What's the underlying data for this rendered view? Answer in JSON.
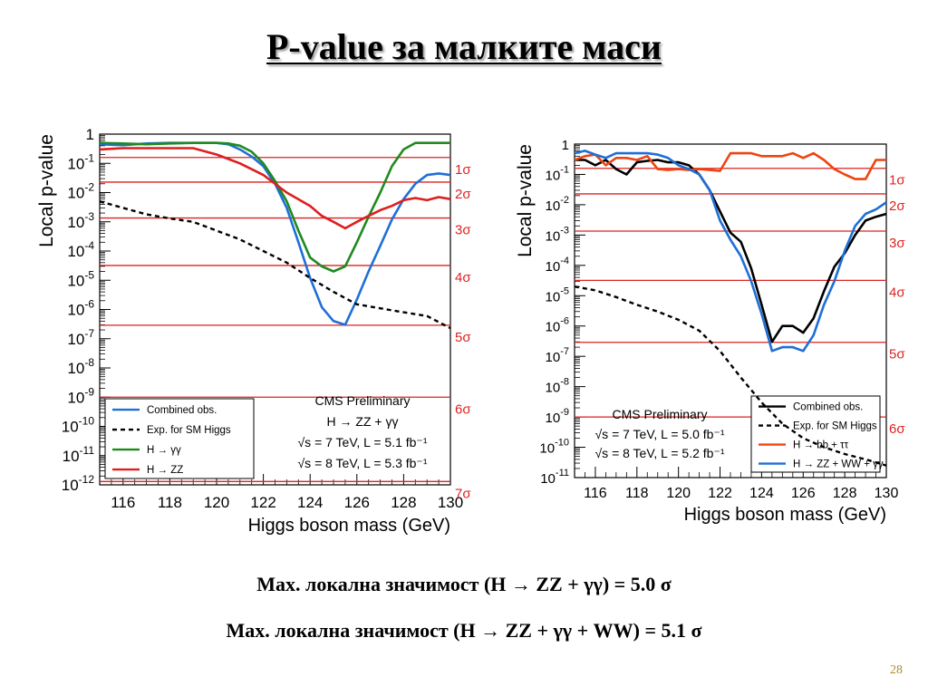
{
  "slide": {
    "title": "P-value за малките маси",
    "summary_1": "Max. локална значимост (H → ZZ + γγ) = 5.0 σ",
    "summary_2": "Max. локална значимост (H → ZZ + γγ + WW) = 5.1 σ",
    "page_number": "28"
  },
  "chart_data": [
    {
      "type": "line",
      "xlabel": "Higgs boson mass (GeV)",
      "ylabel": "Local p-value",
      "xlim": [
        115,
        130
      ],
      "y_scale": "log",
      "ylim": [
        1e-12,
        1
      ],
      "x_ticks": [
        "116",
        "118",
        "120",
        "122",
        "124",
        "126",
        "128",
        "130"
      ],
      "y_ticks": [
        {
          "base": "1",
          "exp": ""
        },
        {
          "base": "10",
          "exp": "-1"
        },
        {
          "base": "10",
          "exp": "-2"
        },
        {
          "base": "10",
          "exp": "-3"
        },
        {
          "base": "10",
          "exp": "-4"
        },
        {
          "base": "10",
          "exp": "-5"
        },
        {
          "base": "10",
          "exp": "-6"
        },
        {
          "base": "10",
          "exp": "-7"
        },
        {
          "base": "10",
          "exp": "-8"
        },
        {
          "base": "10",
          "exp": "-9"
        },
        {
          "base": "10",
          "exp": "-10"
        },
        {
          "base": "10",
          "exp": "-11"
        },
        {
          "base": "10",
          "exp": "-12"
        }
      ],
      "sigma_lines": [
        {
          "label": "1σ",
          "p": 0.159
        },
        {
          "label": "2σ",
          "p": 0.0228
        },
        {
          "label": "3σ",
          "p": 0.00135
        },
        {
          "label": "4σ",
          "p": 3.2e-05
        },
        {
          "label": "5σ",
          "p": 2.9e-07
        },
        {
          "label": "6σ",
          "p": 1e-09
        },
        {
          "label": "7σ",
          "p": 1.3e-12
        }
      ],
      "annotation": [
        "CMS Preliminary",
        "H → ZZ + γγ",
        "√s = 7 TeV, L = 5.1 fb⁻¹",
        "√s = 8 TeV, L = 5.3 fb⁻¹"
      ],
      "legend_position": "bottom-left",
      "series": [
        {
          "name": "Combined obs.",
          "color": "#1f6fd6",
          "style": "solid",
          "x": [
            115,
            116,
            117,
            118,
            119,
            120,
            120.5,
            121,
            121.5,
            122,
            122.5,
            123,
            123.5,
            124,
            124.5,
            125,
            125.5,
            126,
            126.5,
            127,
            127.5,
            128,
            128.5,
            129,
            129.5,
            130
          ],
          "y": [
            0.45,
            0.42,
            0.48,
            0.5,
            0.5,
            0.5,
            0.45,
            0.3,
            0.17,
            0.08,
            0.02,
            0.003,
            0.0002,
            1.2e-05,
            1.2e-06,
            4e-07,
            3e-07,
            2.2e-06,
            2e-05,
            0.00015,
            0.0012,
            0.006,
            0.02,
            0.04,
            0.045,
            0.04
          ]
        },
        {
          "name": "Exp. for SM Higgs",
          "color": "#000000",
          "style": "dashed",
          "x": [
            115,
            116,
            117,
            118,
            119,
            120,
            121,
            122,
            123,
            124,
            125,
            126,
            127,
            128,
            129,
            130
          ],
          "y": [
            0.005,
            0.003,
            0.0018,
            0.0013,
            0.001,
            0.0005,
            0.00025,
            0.0001,
            4e-05,
            1.2e-05,
            4e-06,
            1.5e-06,
            1.1e-06,
            8e-07,
            6e-07,
            2.3e-07
          ]
        },
        {
          "name": "H → γγ",
          "color": "#1f8a1f",
          "style": "solid",
          "x": [
            115,
            116,
            117,
            118,
            119,
            120,
            120.5,
            121,
            121.5,
            122,
            122.5,
            123,
            123.5,
            124,
            124.5,
            125,
            125.5,
            126,
            126.5,
            127,
            127.5,
            128,
            128.5,
            129,
            129.5,
            130
          ],
          "y": [
            0.5,
            0.48,
            0.45,
            0.48,
            0.5,
            0.5,
            0.48,
            0.4,
            0.25,
            0.1,
            0.025,
            0.005,
            0.0005,
            6e-05,
            3e-05,
            2e-05,
            3e-05,
            0.0002,
            0.0015,
            0.01,
            0.08,
            0.3,
            0.5,
            0.5,
            0.5,
            0.5
          ]
        },
        {
          "name": "H → ZZ",
          "color": "#dd1f1f",
          "style": "solid",
          "x": [
            115,
            116,
            117,
            118,
            119,
            120,
            121,
            122,
            123,
            124,
            124.5,
            125,
            125.5,
            126,
            126.5,
            127,
            127.5,
            128,
            128.5,
            129,
            129.5,
            130
          ],
          "y": [
            0.3,
            0.33,
            0.33,
            0.33,
            0.33,
            0.2,
            0.1,
            0.04,
            0.01,
            0.0035,
            0.0016,
            0.001,
            0.0006,
            0.001,
            0.0016,
            0.0025,
            0.0035,
            0.0055,
            0.0065,
            0.0055,
            0.007,
            0.006
          ]
        }
      ]
    },
    {
      "type": "line",
      "xlabel": "Higgs boson mass (GeV)",
      "ylabel": "Local p-value",
      "xlim": [
        115,
        130
      ],
      "y_scale": "log",
      "ylim": [
        1e-11,
        1
      ],
      "x_ticks": [
        "116",
        "118",
        "120",
        "122",
        "124",
        "126",
        "128",
        "130"
      ],
      "y_ticks": [
        {
          "base": "1",
          "exp": ""
        },
        {
          "base": "10",
          "exp": "-1"
        },
        {
          "base": "10",
          "exp": "-2"
        },
        {
          "base": "10",
          "exp": "-3"
        },
        {
          "base": "10",
          "exp": "-4"
        },
        {
          "base": "10",
          "exp": "-5"
        },
        {
          "base": "10",
          "exp": "-6"
        },
        {
          "base": "10",
          "exp": "-7"
        },
        {
          "base": "10",
          "exp": "-8"
        },
        {
          "base": "10",
          "exp": "-9"
        },
        {
          "base": "10",
          "exp": "-10"
        },
        {
          "base": "10",
          "exp": "-11"
        }
      ],
      "sigma_lines": [
        {
          "label": "1σ",
          "p": 0.159
        },
        {
          "label": "2σ",
          "p": 0.0228
        },
        {
          "label": "3σ",
          "p": 0.00135
        },
        {
          "label": "4σ",
          "p": 3.2e-05
        },
        {
          "label": "5σ",
          "p": 2.9e-07
        },
        {
          "label": "6σ",
          "p": 1e-09
        }
      ],
      "annotation": [
        "CMS Preliminary",
        "√s = 7 TeV, L = 5.0 fb⁻¹",
        "√s = 8 TeV, L = 5.2 fb⁻¹"
      ],
      "legend_position": "bottom-right",
      "series": [
        {
          "name": "Combined obs.",
          "color": "#000000",
          "style": "solid",
          "x": [
            115,
            115.5,
            116,
            116.5,
            117,
            117.5,
            118,
            118.5,
            119,
            119.5,
            120,
            120.5,
            121,
            121.5,
            122,
            122.5,
            123,
            123.5,
            124,
            124.5,
            125,
            125.5,
            126,
            126.5,
            127,
            127.5,
            128,
            128.5,
            129,
            129.5,
            130
          ],
          "y": [
            0.3,
            0.3,
            0.2,
            0.3,
            0.15,
            0.1,
            0.25,
            0.28,
            0.3,
            0.25,
            0.25,
            0.2,
            0.1,
            0.03,
            0.006,
            0.0012,
            0.0006,
            8e-05,
            5e-06,
            3e-07,
            1e-06,
            1e-06,
            6e-07,
            1.8e-06,
            1.4e-05,
            9e-05,
            0.00025,
            0.001,
            0.003,
            0.004,
            0.005
          ]
        },
        {
          "name": "Exp. for SM Higgs",
          "color": "#000000",
          "style": "dashed",
          "x": [
            115,
            116,
            117,
            118,
            119,
            120,
            121,
            122,
            123,
            124,
            125,
            126,
            127,
            128,
            129,
            130
          ],
          "y": [
            2e-05,
            1.5e-05,
            9e-06,
            5e-06,
            3e-06,
            1.6e-06,
            7e-07,
            1.5e-07,
            2e-08,
            3e-09,
            6e-10,
            2e-10,
            1e-10,
            6e-11,
            4e-11,
            2.5e-11
          ]
        },
        {
          "name": "H → bb + ττ",
          "color": "#ee4411",
          "style": "solid",
          "x": [
            115,
            115.5,
            116,
            116.5,
            117,
            117.5,
            118,
            118.5,
            119,
            119.5,
            120,
            120.5,
            121,
            121.5,
            122,
            122.5,
            123,
            123.5,
            124,
            124.5,
            125,
            125.5,
            126,
            126.5,
            127,
            127.5,
            128,
            128.5,
            129,
            129.5,
            130
          ],
          "y": [
            0.3,
            0.4,
            0.45,
            0.2,
            0.35,
            0.35,
            0.3,
            0.4,
            0.15,
            0.14,
            0.15,
            0.14,
            0.15,
            0.14,
            0.13,
            0.5,
            0.5,
            0.5,
            0.4,
            0.4,
            0.4,
            0.5,
            0.35,
            0.5,
            0.3,
            0.15,
            0.1,
            0.07,
            0.07,
            0.3,
            0.3
          ]
        },
        {
          "name": "H → ZZ + WW + γγ",
          "color": "#1f6fd6",
          "style": "solid",
          "x": [
            115,
            115.5,
            116,
            116.5,
            117,
            117.5,
            118,
            118.5,
            119,
            119.5,
            120,
            120.5,
            121,
            121.5,
            122,
            122.5,
            123,
            123.5,
            124,
            124.5,
            125,
            125.5,
            126,
            126.5,
            127,
            127.5,
            128,
            128.5,
            129,
            129.5,
            130
          ],
          "y": [
            0.5,
            0.6,
            0.45,
            0.35,
            0.5,
            0.5,
            0.5,
            0.5,
            0.45,
            0.35,
            0.2,
            0.15,
            0.1,
            0.03,
            0.003,
            0.0007,
            0.0002,
            3e-05,
            2.5e-06,
            1.5e-07,
            2e-07,
            2e-07,
            1.5e-07,
            5e-07,
            5e-06,
            3e-05,
            0.0003,
            0.002,
            0.005,
            0.007,
            0.012
          ]
        }
      ]
    }
  ]
}
